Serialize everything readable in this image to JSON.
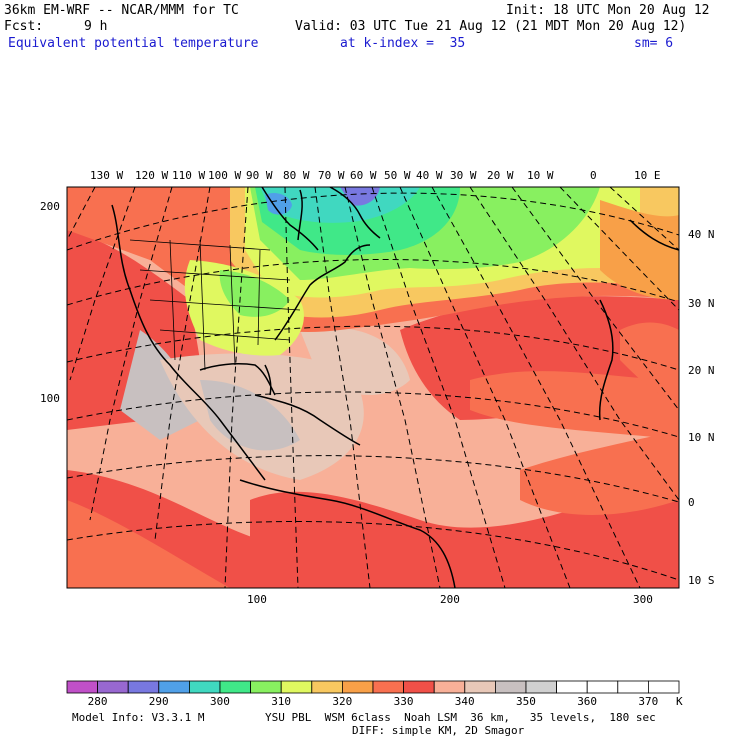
{
  "header": {
    "model": "36km EM-WRF -- NCAR/MMM for TC",
    "init": "Init: 18 UTC Mon 20 Aug 12",
    "fcst_label": "Fcst:",
    "fcst_value": "9 h",
    "valid": "Valid: 03 UTC Tue 21 Aug 12 (21 MDT Mon 20 Aug 12)",
    "field": "Equivalent potential temperature",
    "level": "at k-index =  35",
    "sm": "sm= 6"
  },
  "axes": {
    "lon_labels": [
      "130 W",
      "120 W",
      "110 W",
      "100 W",
      "90 W",
      "80 W",
      "70 W",
      "60 W",
      "50 W",
      "40 W",
      "30 W",
      "20 W",
      "10 W",
      "0",
      "10 E"
    ],
    "lat_labels": [
      "40 N",
      "30 N",
      "20 N",
      "10 N",
      "0",
      "10 S"
    ],
    "y_grid_labels": [
      "200",
      "100"
    ],
    "x_grid_labels": [
      "100",
      "200",
      "300"
    ]
  },
  "colorbar": {
    "labels": [
      "280",
      "290",
      "300",
      "310",
      "320",
      "330",
      "340",
      "350",
      "360",
      "370"
    ],
    "unit": "K",
    "colors": [
      "#c050c8",
      "#9868d0",
      "#7878e0",
      "#50a0e8",
      "#40d8c0",
      "#40e888",
      "#88f060",
      "#e0f860",
      "#f8c860",
      "#f8a048",
      "#f87050",
      "#f05048",
      "#f8b098",
      "#e8c8b8",
      "#c8c0c0",
      "#d0d0d0",
      "#ffffff",
      "#ffffff",
      "#ffffff",
      "#ffffff"
    ]
  },
  "footer": {
    "model_info": "Model Info: V3.3.1 M",
    "physics": "YSU PBL  WSM 6class  Noah LSM  36 km,   35 levels,  180 sec",
    "diffusion": "DIFF: simple KM, 2D Smagor"
  }
}
